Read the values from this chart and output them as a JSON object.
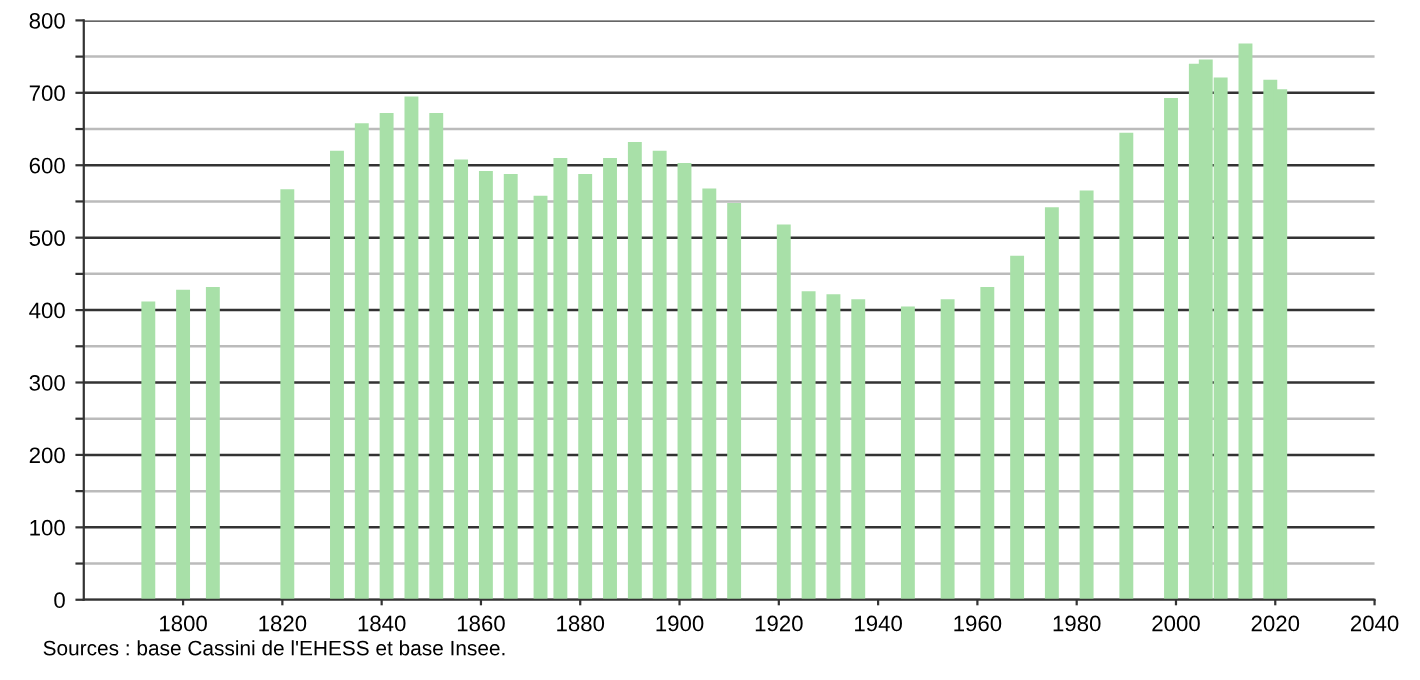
{
  "chart_data": {
    "type": "bar",
    "x": [
      1793,
      1800,
      1806,
      1821,
      1831,
      1836,
      1841,
      1846,
      1851,
      1856,
      1861,
      1866,
      1872,
      1876,
      1881,
      1886,
      1891,
      1896,
      1901,
      1906,
      1911,
      1921,
      1926,
      1931,
      1936,
      1946,
      1954,
      1962,
      1968,
      1975,
      1982,
      1990,
      1999,
      2004,
      2006,
      2009,
      2014,
      2019,
      2021
    ],
    "series": [
      {
        "color": "#a8e0a8",
        "values": [
          412,
          428,
          432,
          567,
          620,
          658,
          672,
          695,
          672,
          608,
          592,
          588,
          558,
          610,
          588,
          610,
          632,
          620,
          603,
          568,
          548,
          518,
          426,
          422,
          415,
          405,
          415,
          432,
          475,
          542,
          565,
          645,
          693,
          740,
          746,
          721,
          768,
          718,
          705
        ]
      }
    ],
    "xlim": [
      1780,
      2040
    ],
    "xticks": [
      1800,
      1820,
      1840,
      1860,
      1880,
      1900,
      1920,
      1940,
      1960,
      1980,
      2000,
      2020,
      2040
    ],
    "ylim": [
      0,
      800
    ],
    "yticks": [
      0,
      {
        "value": 50,
        "label": null
      },
      100,
      {
        "value": 150,
        "label": null
      },
      200,
      {
        "value": 250,
        "label": null
      },
      300,
      {
        "value": 350,
        "label": null
      },
      400,
      {
        "value": 450,
        "label": null
      },
      500,
      {
        "value": 550,
        "label": null
      },
      600,
      {
        "value": 650,
        "label": null
      },
      700,
      {
        "value": 750,
        "label": null
      },
      800
    ],
    "grid": "y",
    "legend": false,
    "annotations": [
      "Sources : base Cassini de l'EHESS et base Insee."
    ]
  }
}
